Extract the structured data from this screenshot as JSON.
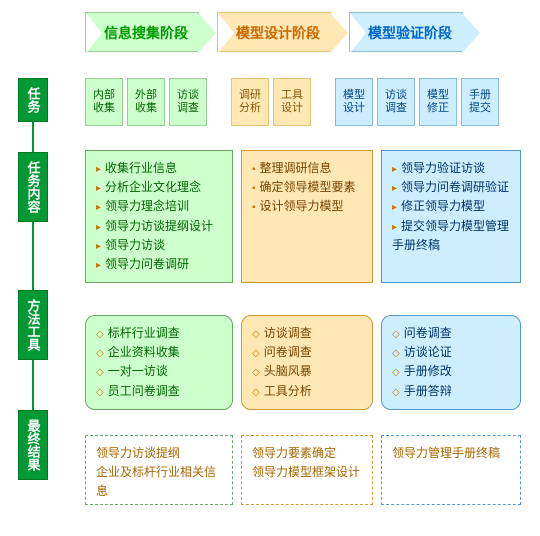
{
  "stages": {
    "s1": "信息搜集阶段",
    "s2": "模型设计阶段",
    "s3": "模型验证阶段"
  },
  "sidebar": {
    "tasks": "任务",
    "content": "任务内容",
    "methods": "方法工具",
    "results": "最终结果"
  },
  "tasks": {
    "g1": [
      "内部\n收集",
      "外部\n收集",
      "访谈\n调查"
    ],
    "g2": [
      "调研\n分析",
      "工具\n设计"
    ],
    "g3": [
      "模型\n设计",
      "访谈\n调查",
      "模型\n修正",
      "手册\n提交"
    ]
  },
  "content": {
    "c1": [
      "收集行业信息",
      "分析企业文化理念",
      "领导力理念培训",
      "领导力访谈提纲设计",
      "领导力访谈",
      "领导力问卷调研"
    ],
    "c2": [
      "整理调研信息",
      "确定领导模型要素",
      "设计领导力模型"
    ],
    "c3": [
      "领导力验证访谈",
      "领导力问卷调研验证",
      "修正领导力模型",
      "提交领导力模型管理手册终稿"
    ]
  },
  "methods": {
    "m1": [
      "标杆行业调查",
      "企业资料收集",
      "一对一访谈",
      "员工问卷调查"
    ],
    "m2": [
      "访谈调查",
      "问卷调查",
      "头脑风暴",
      "工具分析"
    ],
    "m3": [
      "问卷调查",
      "访谈论证",
      "手册修改",
      "手册答辩"
    ]
  },
  "results": {
    "r1": "领导力访谈提纲\n企业及标杆行业相关信息",
    "r2": "领导力要素确定\n领导力模型框架设计",
    "r3": "领导力管理手册终稿"
  },
  "colors": {
    "green_bg": "#ccffcc",
    "orange_bg": "#ffe8b3",
    "blue_bg": "#cceeff",
    "sidebar_bg": "#009933"
  }
}
